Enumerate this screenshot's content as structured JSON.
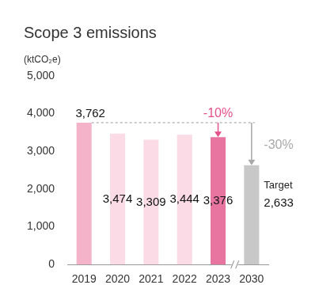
{
  "chart_data": {
    "type": "bar",
    "title": "Scope 3 emissions",
    "ylabel": "(ktCO₂e)",
    "categories": [
      "2019",
      "2020",
      "2021",
      "2022",
      "2023",
      "2030"
    ],
    "values": [
      3762,
      3474,
      3309,
      3444,
      3376,
      2633
    ],
    "value_labels": [
      "3,762",
      "3,474",
      "3,309",
      "3,444",
      "3,376",
      "2,633"
    ],
    "colors": [
      "#f4b3c8",
      "#fadbe6",
      "#fadbe6",
      "#fadbe6",
      "#e8759f",
      "#c8c8c8"
    ],
    "ylim": [
      0,
      5000
    ],
    "yticks": [
      0,
      {
        "value": 1000,
        "label": "1,000"
      },
      {
        "value": 2000,
        "label": "2,000"
      },
      {
        "value": 3000,
        "label": "3,000"
      },
      {
        "value": 4000,
        "label": "4,000"
      },
      {
        "value": 5000,
        "label": "5,000"
      }
    ],
    "grid": false,
    "data_labels": true,
    "annotations": [
      {
        "text": "-10%",
        "category": "2023",
        "from": "2019",
        "color": "#e4508a"
      },
      {
        "text": "-30%",
        "category": "2030",
        "from": "2019",
        "color": "#a8a8a8"
      },
      {
        "text": "Target",
        "category": "2030"
      }
    ]
  }
}
